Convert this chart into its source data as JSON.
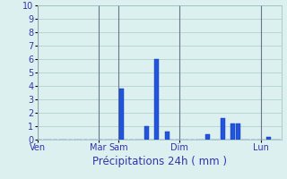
{
  "title": "Précipitations 24h ( mm )",
  "ylim": [
    0,
    10
  ],
  "yticks": [
    0,
    1,
    2,
    3,
    4,
    5,
    6,
    7,
    8,
    9,
    10
  ],
  "background_color": "#ddf0f0",
  "bar_color": "#2255dd",
  "bar_edge_color": "#1133aa",
  "grid_color": "#aacccc",
  "vline_color": "#667788",
  "tick_color": "#3333aa",
  "title_color": "#3333aa",
  "num_bars": 48,
  "bar_values": [
    0,
    0,
    0,
    0,
    0,
    0,
    0,
    0,
    0,
    0,
    0,
    0,
    0,
    0,
    0,
    0,
    3.8,
    0,
    0,
    0,
    0,
    1.0,
    0,
    6.0,
    0,
    0.6,
    0,
    0,
    0,
    0,
    0,
    0,
    0,
    0.4,
    0,
    0,
    1.6,
    0,
    1.2,
    1.2,
    0,
    0,
    0,
    0,
    0,
    0.2,
    0,
    0
  ],
  "day_labels": [
    "Ven",
    "Mar",
    "Sam",
    "Dim",
    "Lun"
  ],
  "day_vline_pos": [
    0,
    12,
    16,
    28,
    44
  ],
  "tick_label_fontsize": 7,
  "xlabel_fontsize": 8.5,
  "ylabel_fontsize": 7
}
